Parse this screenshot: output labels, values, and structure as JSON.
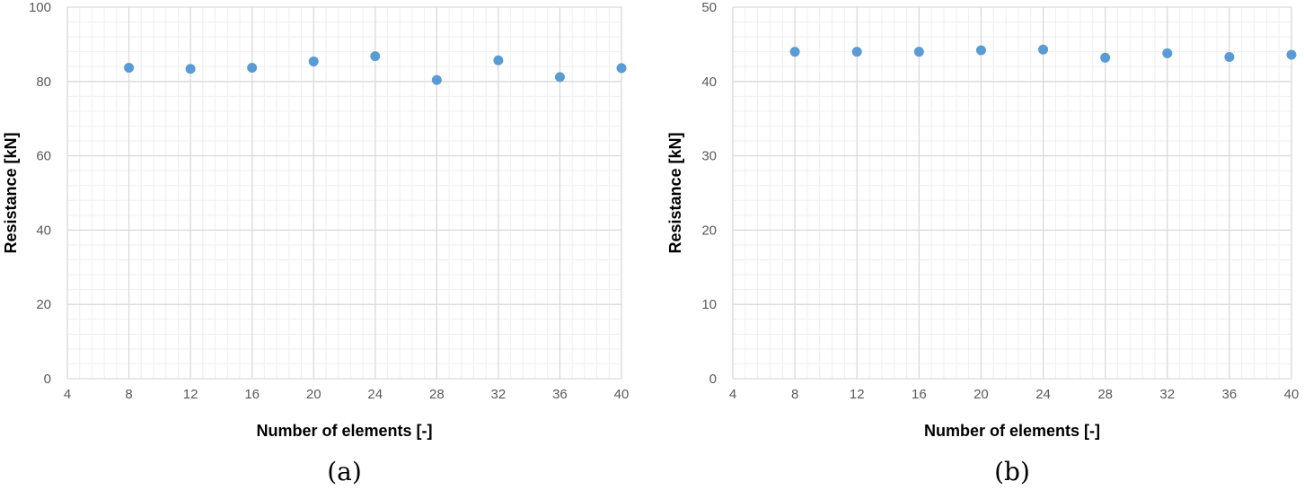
{
  "chart_data": [
    {
      "type": "scatter",
      "caption": "(a)",
      "xlabel": "Number of elements [-]",
      "ylabel": "Resistance [kN]",
      "xlim": [
        4,
        40
      ],
      "ylim": [
        0,
        100
      ],
      "xticks": [
        4,
        8,
        12,
        16,
        20,
        24,
        28,
        32,
        36,
        40
      ],
      "yticks": [
        0,
        20,
        40,
        60,
        80,
        100
      ],
      "x": [
        8,
        12,
        16,
        20,
        24,
        28,
        32,
        36,
        40
      ],
      "y": [
        83.7,
        83.4,
        83.7,
        85.4,
        86.8,
        80.4,
        85.7,
        81.2,
        83.6
      ],
      "grid": "major and minor",
      "marker_color": "#5b9bd5"
    },
    {
      "type": "scatter",
      "caption": "(b)",
      "xlabel": "Number of elements [-]",
      "ylabel": "Resistance [kN]",
      "xlim": [
        4,
        40
      ],
      "ylim": [
        0,
        50
      ],
      "xticks": [
        4,
        8,
        12,
        16,
        20,
        24,
        28,
        32,
        36,
        40
      ],
      "yticks": [
        0,
        10,
        20,
        30,
        40,
        50
      ],
      "x": [
        8,
        12,
        16,
        20,
        24,
        28,
        32,
        36,
        40
      ],
      "y": [
        44.0,
        44.0,
        44.0,
        44.2,
        44.3,
        43.2,
        43.8,
        43.3,
        43.6
      ],
      "grid": "major and minor",
      "marker_color": "#5b9bd5"
    }
  ]
}
